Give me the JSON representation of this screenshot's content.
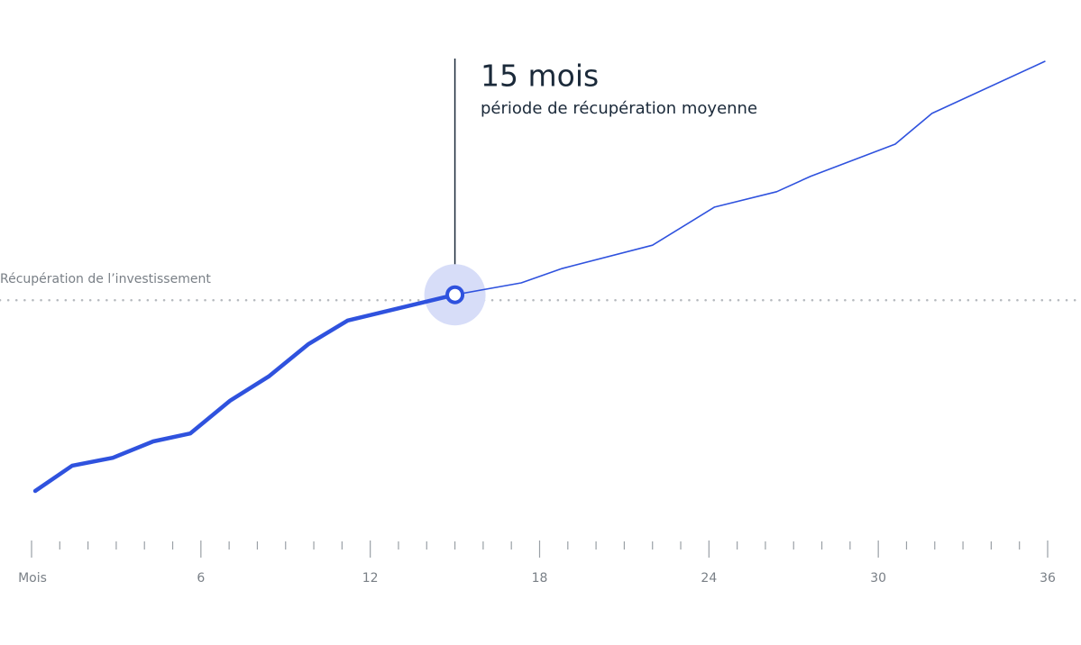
{
  "chart_data": {
    "type": "line",
    "x": [
      0.13,
      1.44,
      2.88,
      4.31,
      5.62,
      7.03,
      8.4,
      9.8,
      11.2,
      15,
      17.35,
      18.8,
      22.0,
      24.2,
      26.4,
      27.6,
      30.6,
      31.9,
      35.9
    ],
    "series": [
      {
        "color": "#2f52de",
        "values": [
          10,
          15.1,
          16.7,
          20,
          21.6,
          28.2,
          33.1,
          39.6,
          44.4,
          49.6,
          52,
          54.9,
          59.6,
          67.3,
          70.4,
          73.5,
          80,
          86.2,
          96.7
        ]
      }
    ],
    "xlim": [
      0,
      36
    ],
    "ylim": [
      0,
      100
    ],
    "xticks": [
      {
        "value": 0,
        "label": "Mois"
      },
      6,
      12,
      18,
      24,
      30,
      36
    ],
    "xminor_ticks": [
      1,
      2,
      3,
      4,
      5,
      7,
      8,
      9,
      10,
      11,
      13,
      14,
      15,
      16,
      17,
      19,
      20,
      21,
      22,
      23,
      25,
      26,
      27,
      28,
      29,
      31,
      32,
      33,
      34,
      35
    ],
    "breakeven": {
      "value": 48.5,
      "label": "Récupération de l’investissement"
    },
    "highlight": {
      "value": 15,
      "label": "15 mois",
      "sublabel": "période de récupération moyenne"
    }
  }
}
